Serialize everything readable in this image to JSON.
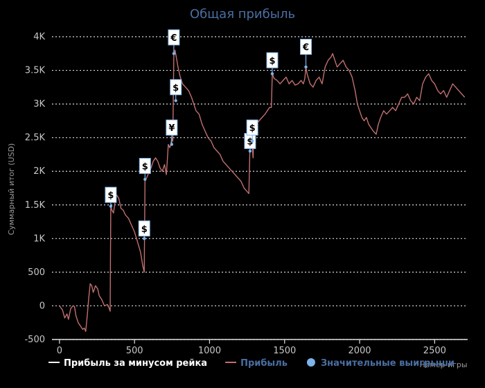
{
  "chart_data": {
    "type": "line",
    "title": "Общая прибыль",
    "xlabel": "Номер игры",
    "ylabel": "Суммарный итог (USD)",
    "xlim": [
      -50,
      2720
    ],
    "ylim": [
      -500,
      4000
    ],
    "x_ticks": [
      0,
      500,
      1000,
      1500,
      2000,
      2500
    ],
    "x_tick_labels": [
      "0",
      "500",
      "1000",
      "1500",
      "2000",
      "2500"
    ],
    "y_ticks": [
      -500,
      0,
      500,
      1000,
      1500,
      2000,
      2500,
      3000,
      3500,
      4000
    ],
    "y_tick_labels": [
      "-500",
      "0",
      "500",
      "1K",
      "1.5K",
      "2K",
      "2.5K",
      "3K",
      "3.5K",
      "4K"
    ],
    "grid": true,
    "legend_position": "bottom-left",
    "series": [
      {
        "name": "Прибыль за минусом рейка",
        "color": "#ffffff",
        "points": []
      },
      {
        "name": "Прибыль",
        "color": "#c07070",
        "points": [
          [
            0,
            0
          ],
          [
            20,
            -60
          ],
          [
            35,
            -180
          ],
          [
            50,
            -120
          ],
          [
            60,
            -200
          ],
          [
            75,
            -40
          ],
          [
            90,
            0
          ],
          [
            100,
            -10
          ],
          [
            110,
            -150
          ],
          [
            125,
            -250
          ],
          [
            140,
            -300
          ],
          [
            155,
            -350
          ],
          [
            165,
            -330
          ],
          [
            175,
            -380
          ],
          [
            185,
            -150
          ],
          [
            195,
            120
          ],
          [
            205,
            330
          ],
          [
            215,
            300
          ],
          [
            225,
            200
          ],
          [
            240,
            300
          ],
          [
            255,
            250
          ],
          [
            265,
            150
          ],
          [
            280,
            100
          ],
          [
            300,
            0
          ],
          [
            320,
            20
          ],
          [
            330,
            -30
          ],
          [
            338,
            -80
          ],
          [
            342,
            1480
          ],
          [
            350,
            1420
          ],
          [
            360,
            1380
          ],
          [
            370,
            1540
          ],
          [
            380,
            1650
          ],
          [
            395,
            1600
          ],
          [
            410,
            1450
          ],
          [
            425,
            1420
          ],
          [
            440,
            1350
          ],
          [
            460,
            1300
          ],
          [
            480,
            1200
          ],
          [
            500,
            1100
          ],
          [
            520,
            950
          ],
          [
            540,
            800
          ],
          [
            555,
            600
          ],
          [
            565,
            500
          ],
          [
            570,
            1880
          ],
          [
            580,
            1900
          ],
          [
            590,
            1950
          ],
          [
            600,
            2000
          ],
          [
            610,
            2050
          ],
          [
            625,
            2150
          ],
          [
            640,
            2200
          ],
          [
            655,
            2150
          ],
          [
            670,
            2050
          ],
          [
            685,
            2000
          ],
          [
            700,
            2100
          ],
          [
            712,
            1950
          ],
          [
            718,
            2150
          ],
          [
            725,
            2400
          ],
          [
            735,
            2350
          ],
          [
            742,
            2400
          ],
          [
            748,
            2500
          ],
          [
            755,
            2450
          ],
          [
            762,
            3750
          ],
          [
            770,
            3800
          ],
          [
            778,
            3700
          ],
          [
            790,
            3550
          ],
          [
            805,
            3400
          ],
          [
            820,
            3300
          ],
          [
            840,
            3250
          ],
          [
            860,
            3200
          ],
          [
            880,
            3100
          ],
          [
            895,
            3000
          ],
          [
            910,
            2900
          ],
          [
            930,
            2850
          ],
          [
            950,
            2700
          ],
          [
            970,
            2600
          ],
          [
            990,
            2500
          ],
          [
            1010,
            2450
          ],
          [
            1030,
            2350
          ],
          [
            1050,
            2300
          ],
          [
            1070,
            2250
          ],
          [
            1090,
            2150
          ],
          [
            1110,
            2100
          ],
          [
            1130,
            2050
          ],
          [
            1150,
            2000
          ],
          [
            1170,
            1950
          ],
          [
            1190,
            1900
          ],
          [
            1210,
            1850
          ],
          [
            1230,
            1750
          ],
          [
            1250,
            1700
          ],
          [
            1262,
            1670
          ],
          [
            1270,
            2450
          ],
          [
            1280,
            2500
          ],
          [
            1290,
            2200
          ],
          [
            1295,
            2600
          ],
          [
            1310,
            2700
          ],
          [
            1330,
            2750
          ],
          [
            1350,
            2800
          ],
          [
            1370,
            2850
          ],
          [
            1385,
            2900
          ],
          [
            1400,
            2950
          ],
          [
            1412,
            2950
          ],
          [
            1418,
            3450
          ],
          [
            1430,
            3380
          ],
          [
            1450,
            3350
          ],
          [
            1470,
            3300
          ],
          [
            1490,
            3350
          ],
          [
            1510,
            3400
          ],
          [
            1530,
            3300
          ],
          [
            1550,
            3350
          ],
          [
            1570,
            3280
          ],
          [
            1590,
            3300
          ],
          [
            1610,
            3350
          ],
          [
            1625,
            3300
          ],
          [
            1635,
            3380
          ],
          [
            1642,
            3550
          ],
          [
            1650,
            3450
          ],
          [
            1670,
            3300
          ],
          [
            1690,
            3250
          ],
          [
            1710,
            3350
          ],
          [
            1730,
            3400
          ],
          [
            1750,
            3300
          ],
          [
            1770,
            3550
          ],
          [
            1790,
            3650
          ],
          [
            1810,
            3700
          ],
          [
            1820,
            3750
          ],
          [
            1835,
            3650
          ],
          [
            1850,
            3550
          ],
          [
            1870,
            3600
          ],
          [
            1890,
            3650
          ],
          [
            1910,
            3550
          ],
          [
            1930,
            3500
          ],
          [
            1950,
            3400
          ],
          [
            1970,
            3200
          ],
          [
            1985,
            3000
          ],
          [
            2000,
            2900
          ],
          [
            2015,
            2800
          ],
          [
            2030,
            2750
          ],
          [
            2045,
            2800
          ],
          [
            2060,
            2700
          ],
          [
            2075,
            2650
          ],
          [
            2090,
            2600
          ],
          [
            2110,
            2550
          ],
          [
            2125,
            2700
          ],
          [
            2140,
            2800
          ],
          [
            2160,
            2900
          ],
          [
            2180,
            2850
          ],
          [
            2200,
            2900
          ],
          [
            2220,
            2950
          ],
          [
            2240,
            2900
          ],
          [
            2260,
            3000
          ],
          [
            2280,
            3100
          ],
          [
            2300,
            3100
          ],
          [
            2320,
            3150
          ],
          [
            2340,
            3050
          ],
          [
            2360,
            3000
          ],
          [
            2380,
            3100
          ],
          [
            2400,
            3050
          ],
          [
            2420,
            3300
          ],
          [
            2440,
            3400
          ],
          [
            2460,
            3450
          ],
          [
            2480,
            3350
          ],
          [
            2500,
            3300
          ],
          [
            2520,
            3200
          ],
          [
            2540,
            3150
          ],
          [
            2560,
            3200
          ],
          [
            2580,
            3100
          ],
          [
            2600,
            3200
          ],
          [
            2620,
            3300
          ],
          [
            2640,
            3250
          ],
          [
            2660,
            3200
          ],
          [
            2680,
            3150
          ],
          [
            2700,
            3100
          ]
        ]
      },
      {
        "name": "Значительные выигрыши",
        "color": "#7cb4ec",
        "markers": [
          {
            "x": 342,
            "y": 1480,
            "symbol": "$",
            "label_y": 1650
          },
          {
            "x": 565,
            "y": 1000,
            "symbol": "$",
            "label_y": 1150
          },
          {
            "x": 570,
            "y": 1880,
            "symbol": "$",
            "label_y": 2080
          },
          {
            "x": 748,
            "y": 2400,
            "symbol": "¥",
            "label_y": 2650
          },
          {
            "x": 762,
            "y": 3750,
            "symbol": "€",
            "label_y": 3990
          },
          {
            "x": 775,
            "y": 3050,
            "symbol": "$",
            "label_y": 3250
          },
          {
            "x": 1270,
            "y": 2300,
            "symbol": "$",
            "label_y": 2450
          },
          {
            "x": 1285,
            "y": 2450,
            "symbol": "$",
            "label_y": 2650
          },
          {
            "x": 1418,
            "y": 3450,
            "symbol": "$",
            "label_y": 3650
          },
          {
            "x": 1642,
            "y": 3550,
            "symbol": "€",
            "label_y": 3850
          }
        ]
      }
    ]
  },
  "legend": {
    "items": [
      {
        "label": "Прибыль за минусом рейка",
        "color": "#ffffff",
        "kind": "line"
      },
      {
        "label": "Прибыль",
        "color": "#c07070",
        "kind": "line"
      },
      {
        "label": "Значительные выигрыши",
        "color": "#7cb4ec",
        "kind": "circle"
      }
    ]
  }
}
